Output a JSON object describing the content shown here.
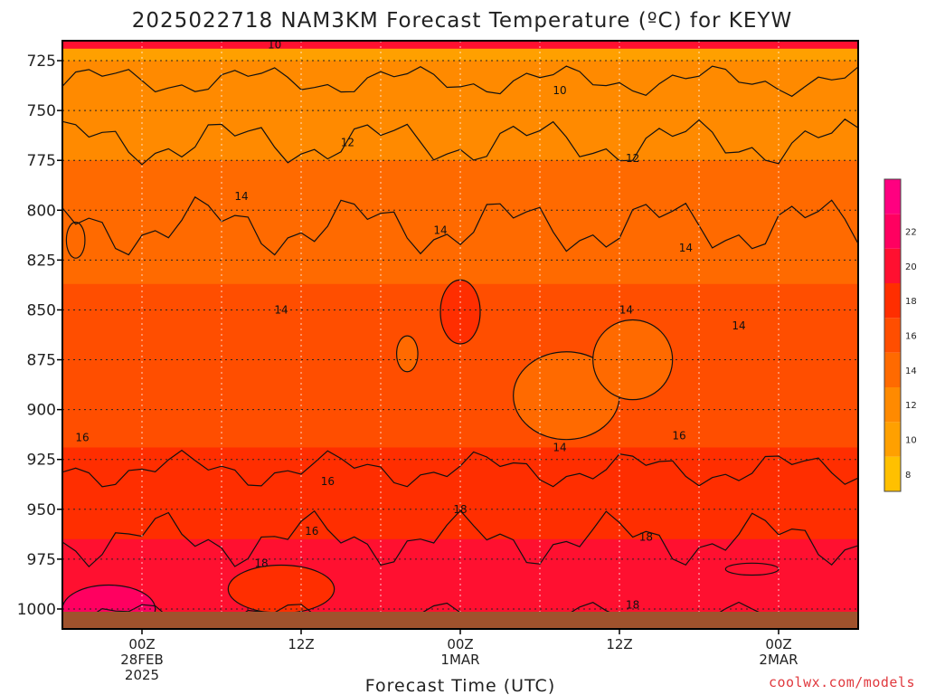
{
  "chart_data": {
    "type": "heatmap",
    "title": "2025022718 NAM3KM Forecast Temperature (ºC) for KEYW",
    "xlabel": "Forecast Time (UTC)",
    "ylabel": "",
    "credit": "coolwx.com/models",
    "y_axis": {
      "reversed": true,
      "ticks": [
        725,
        750,
        775,
        800,
        825,
        850,
        875,
        900,
        925,
        950,
        975,
        1000
      ],
      "range": [
        715,
        1010
      ]
    },
    "x_axis": {
      "range_hours": [
        -6,
        54
      ],
      "ticks": [
        {
          "hour": 0,
          "lines": [
            "00Z",
            "28FEB",
            "2025"
          ]
        },
        {
          "hour": 12,
          "lines": [
            "12Z"
          ]
        },
        {
          "hour": 24,
          "lines": [
            "00Z",
            "1MAR"
          ]
        },
        {
          "hour": 36,
          "lines": [
            "12Z"
          ]
        },
        {
          "hour": 48,
          "lines": [
            "00Z",
            "2MAR"
          ]
        }
      ]
    },
    "grid": true,
    "legend": "right",
    "colorbar": {
      "ticks": [
        8,
        10,
        12,
        14,
        16,
        18,
        20,
        22
      ],
      "colors": [
        "#ffc000",
        "#ffa000",
        "#ff8a00",
        "#ff6a00",
        "#ff4e00",
        "#ff2e00",
        "#ff1030",
        "#ff0060",
        "#ff0080"
      ]
    },
    "temperature_profile": {
      "pressure": [
        720,
        750,
        775,
        800,
        825,
        850,
        875,
        900,
        925,
        950,
        975,
        1000,
        1010
      ],
      "temperature": [
        9.8,
        11.0,
        12.0,
        13.2,
        13.8,
        14.2,
        14.5,
        15.2,
        16.2,
        17.5,
        18.3,
        19.0,
        19.4
      ]
    },
    "contour_labels": [
      {
        "text": "10",
        "hour": 10.0,
        "p": 717
      },
      {
        "text": "10",
        "hour": 31.5,
        "p": 740
      },
      {
        "text": "12",
        "hour": 15.5,
        "p": 766
      },
      {
        "text": "12",
        "hour": 37.0,
        "p": 774
      },
      {
        "text": "14",
        "hour": 7.5,
        "p": 793
      },
      {
        "text": "14",
        "hour": 22.5,
        "p": 810
      },
      {
        "text": "14",
        "hour": 41.0,
        "p": 819
      },
      {
        "text": "14",
        "hour": 10.5,
        "p": 850
      },
      {
        "text": "14",
        "hour": 36.5,
        "p": 850
      },
      {
        "text": "14",
        "hour": 45.0,
        "p": 858
      },
      {
        "text": "14",
        "hour": 31.5,
        "p": 919
      },
      {
        "text": "16",
        "hour": -4.5,
        "p": 914
      },
      {
        "text": "16",
        "hour": 14.0,
        "p": 936
      },
      {
        "text": "16",
        "hour": 40.5,
        "p": 913
      },
      {
        "text": "16",
        "hour": 12.8,
        "p": 961
      },
      {
        "text": "18",
        "hour": 9.0,
        "p": 977
      },
      {
        "text": "18",
        "hour": 24.0,
        "p": 950
      },
      {
        "text": "18",
        "hour": 38.0,
        "p": 964
      },
      {
        "text": "18",
        "hour": 37.0,
        "p": 998
      }
    ]
  }
}
